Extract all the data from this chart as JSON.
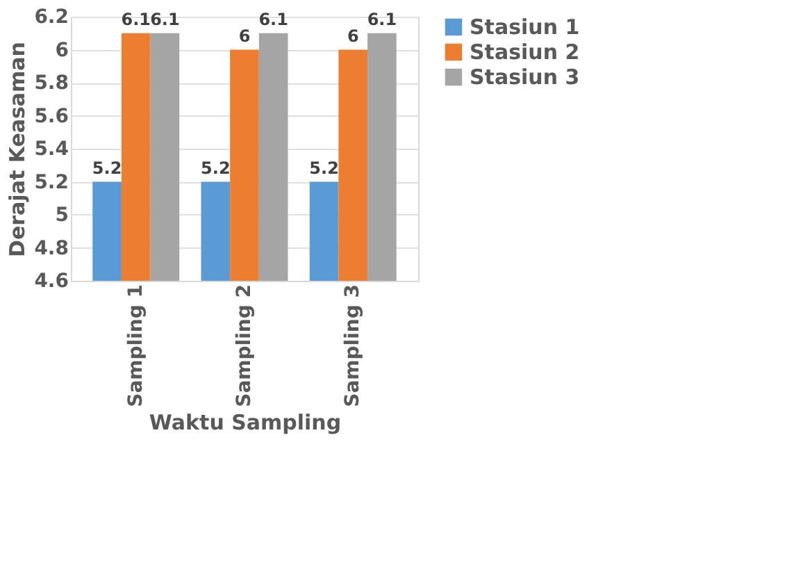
{
  "chart_data": {
    "type": "bar",
    "xlabel": "Waktu Sampling",
    "ylabel": "Derajat Keasaman",
    "categories": [
      "Sampling 1",
      "Sampling 2",
      "Sampling 3"
    ],
    "series": [
      {
        "name": "Stasiun 1",
        "color": "#5b9bd5",
        "values": [
          5.2,
          5.2,
          5.2
        ]
      },
      {
        "name": "Stasiun 2",
        "color": "#ed7d31",
        "values": [
          6.1,
          6,
          6
        ]
      },
      {
        "name": "Stasiun 3",
        "color": "#a5a5a5",
        "values": [
          6.1,
          6.1,
          6.1
        ]
      }
    ],
    "ylim": [
      4.6,
      6.2
    ],
    "yticks": [
      4.6,
      4.8,
      5,
      5.2,
      5.4,
      5.6,
      5.8,
      6,
      6.2
    ],
    "grid": "y",
    "legend": "right",
    "data_labels": true
  }
}
